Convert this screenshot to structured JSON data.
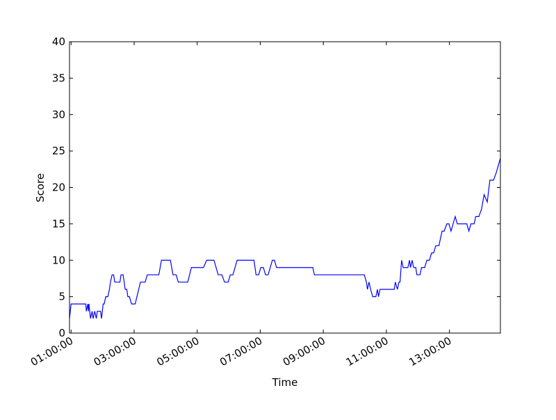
{
  "chart_data": {
    "type": "line",
    "x_label": "Time",
    "y_label": "Score",
    "xlim": [
      "00:57:00",
      "14:37:00"
    ],
    "xticks": [
      "01:00:00",
      "03:00:00",
      "05:00:00",
      "07:00:00",
      "09:00:00",
      "11:00:00",
      "13:00:00"
    ],
    "ylim": [
      0,
      40
    ],
    "yticks": [
      0,
      5,
      10,
      15,
      20,
      25,
      30,
      35,
      40
    ],
    "series": [
      {
        "color": "#0000ff",
        "x": [
          "00:57:00",
          "01:00:00",
          "01:28:00",
          "01:29:00",
          "01:32:00",
          "01:33:00",
          "01:34:00",
          "01:37:00",
          "01:40:00",
          "01:42:00",
          "01:45:00",
          "01:48:00",
          "01:50:00",
          "01:56:00",
          "01:58:00",
          "02:01:00",
          "02:03:00",
          "02:06:00",
          "02:10:00",
          "02:13:00",
          "02:15:00",
          "02:18:00",
          "02:21:00",
          "02:23:00",
          "02:33:00",
          "02:35:00",
          "02:39:00",
          "02:43:00",
          "02:46:00",
          "02:48:00",
          "02:51:00",
          "02:55:00",
          "03:02:00",
          "03:12:00",
          "03:21:00",
          "03:25:00",
          "03:47:00",
          "03:52:00",
          "04:09:00",
          "04:14:00",
          "04:20:00",
          "04:24:00",
          "04:42:00",
          "04:49:00",
          "05:12:00",
          "05:18:00",
          "05:32:00",
          "05:36:00",
          "05:40:00",
          "05:47:00",
          "05:52:00",
          "05:59:00",
          "06:03:00",
          "06:08:00",
          "06:16:00",
          "06:48:00",
          "06:52:00",
          "06:57:00",
          "07:01:00",
          "07:06:00",
          "07:10:00",
          "07:15:00",
          "07:23:00",
          "07:27:00",
          "07:31:00",
          "08:40:00",
          "08:43:00",
          "10:18:00",
          "10:22:00",
          "10:24:00",
          "10:27:00",
          "10:30:00",
          "10:34:00",
          "10:40:00",
          "10:43:00",
          "10:45:00",
          "10:48:00",
          "11:15:00",
          "11:17:00",
          "11:21:00",
          "11:24:00",
          "11:26:00",
          "11:29:00",
          "11:32:00",
          "11:41:00",
          "11:44:00",
          "11:46:00",
          "11:49:00",
          "11:52:00",
          "11:56:00",
          "11:58:00",
          "12:04:00",
          "12:07:00",
          "12:13:00",
          "12:17:00",
          "12:22:00",
          "12:26:00",
          "12:30:00",
          "12:34:00",
          "12:40:00",
          "12:46:00",
          "12:50:00",
          "12:55:00",
          "12:59:00",
          "13:03:00",
          "13:07:00",
          "13:11:00",
          "13:15:00",
          "13:33:00",
          "13:37:00",
          "13:41:00",
          "13:47:00",
          "13:50:00",
          "13:56:00",
          "14:01:00",
          "14:06:00",
          "14:12:00",
          "14:17:00",
          "14:24:00",
          "14:29:00",
          "14:33:00",
          "14:37:00"
        ],
        "values": [
          2,
          4,
          4,
          3,
          4,
          3,
          4,
          2,
          3,
          2,
          3,
          2,
          3,
          3,
          2,
          4,
          4,
          5,
          5,
          6,
          7,
          8,
          8,
          7,
          7,
          8,
          8,
          6,
          6,
          5,
          5,
          4,
          4,
          7,
          7,
          8,
          8,
          10,
          10,
          8,
          8,
          7,
          7,
          9,
          9,
          10,
          10,
          9,
          8,
          8,
          7,
          7,
          8,
          8,
          10,
          10,
          8,
          8,
          9,
          9,
          8,
          8,
          10,
          10,
          9,
          9,
          8,
          8,
          7,
          6,
          7,
          6,
          5,
          5,
          6,
          5,
          6,
          6,
          7,
          6,
          7,
          7,
          10,
          9,
          9,
          10,
          9,
          10,
          9,
          9,
          8,
          8,
          9,
          9,
          10,
          10,
          11,
          11,
          12,
          12,
          14,
          14,
          15,
          15,
          14,
          15,
          16,
          15,
          15,
          14,
          15,
          15,
          16,
          16,
          17,
          19,
          18,
          21,
          21,
          22,
          23,
          24
        ]
      }
    ]
  }
}
